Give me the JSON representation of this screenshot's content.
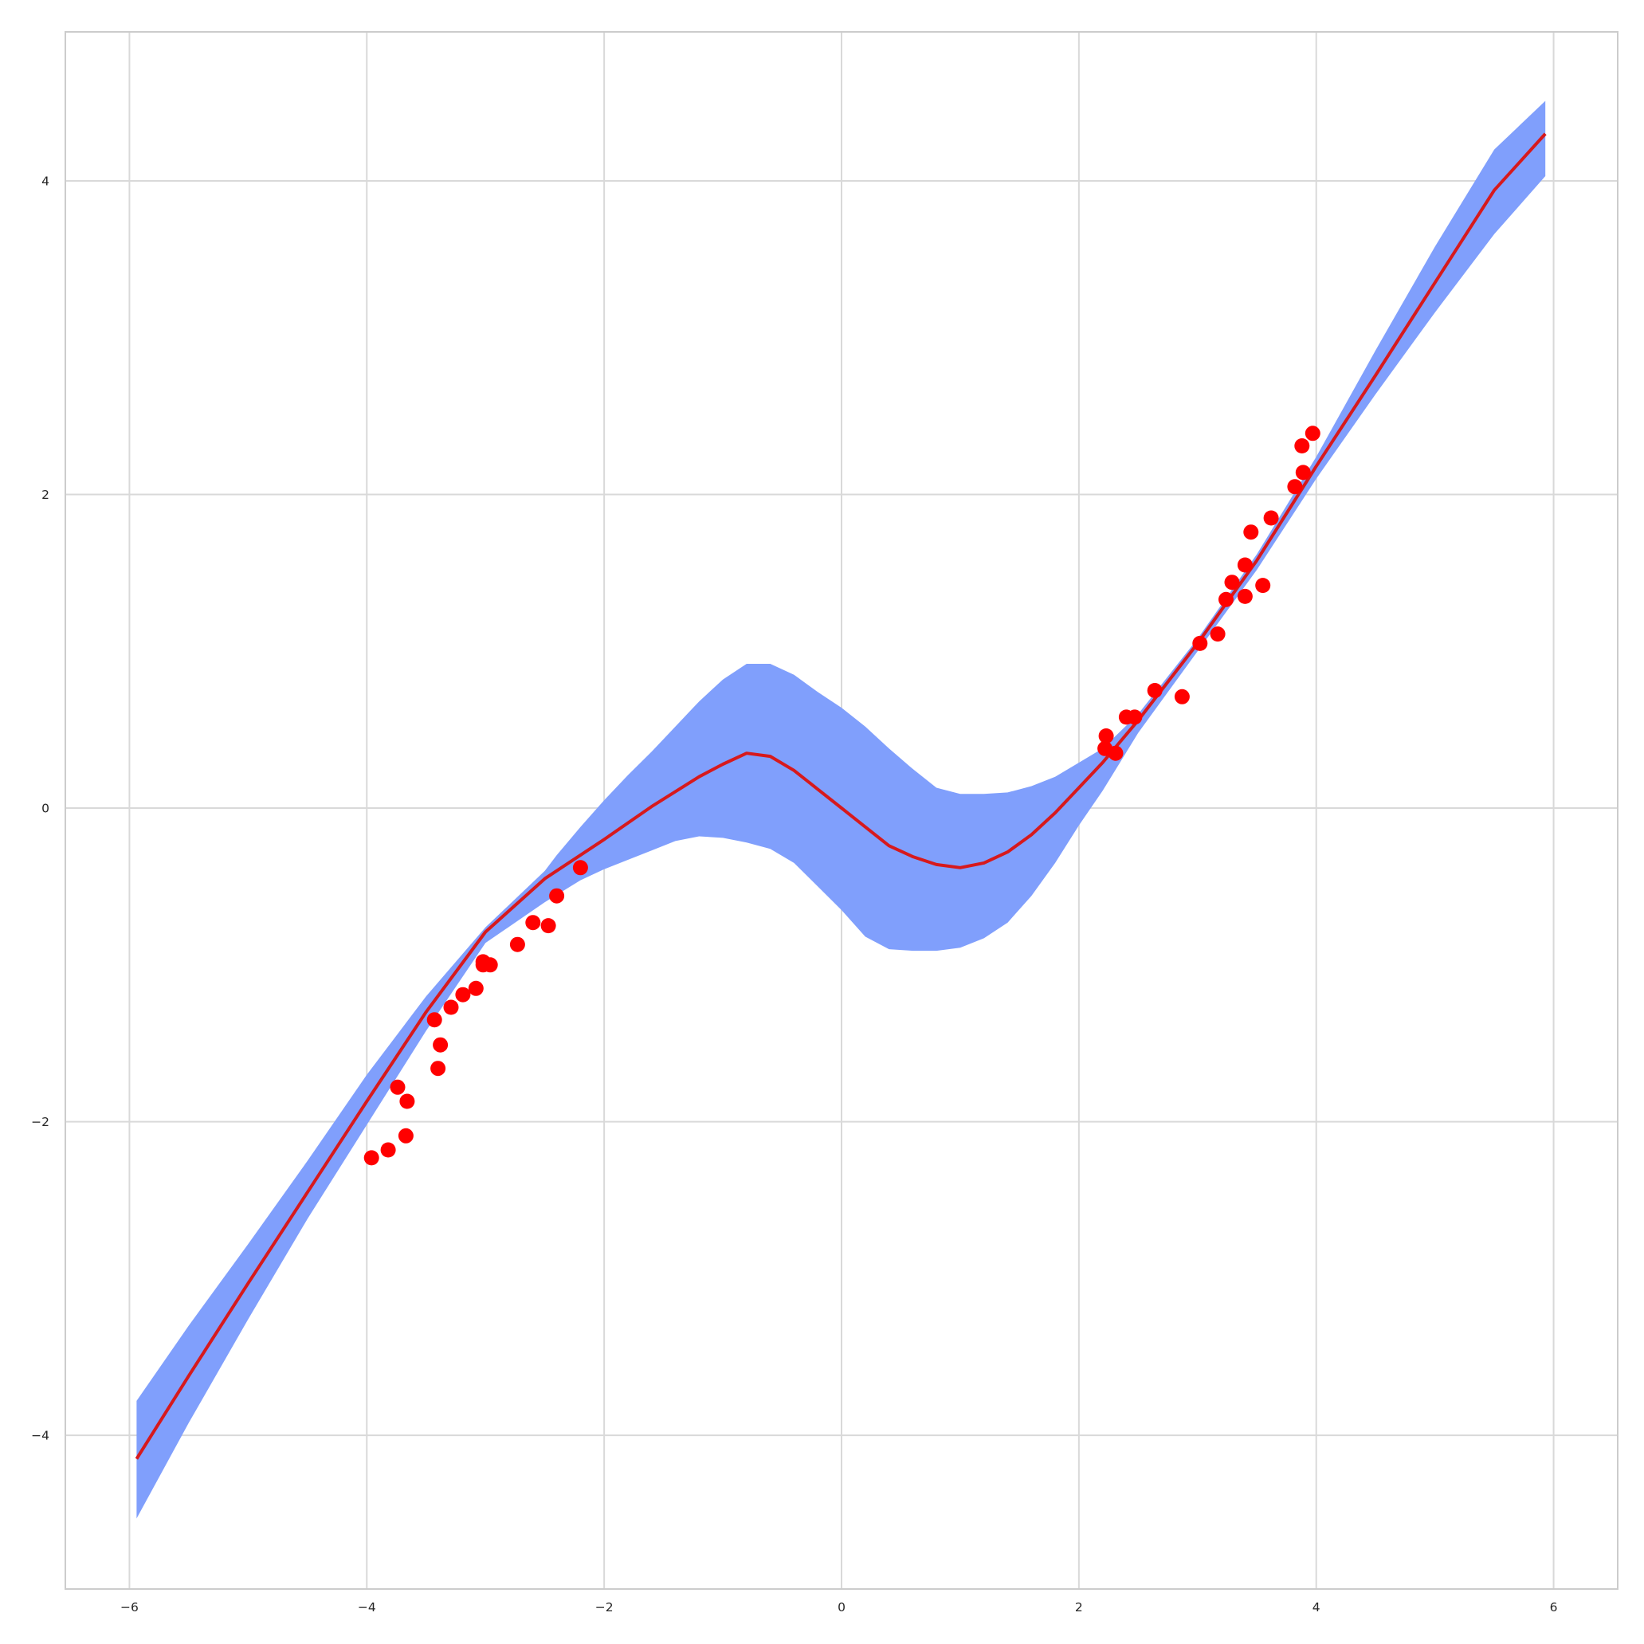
{
  "chart_data": {
    "type": "scatter",
    "title": "",
    "xlabel": "",
    "ylabel": "",
    "xlim": [
      -6.54,
      6.54
    ],
    "ylim": [
      -4.98,
      4.95
    ],
    "xticks": [
      -6,
      -4,
      -2,
      0,
      2,
      4,
      6
    ],
    "xtick_labels": [
      "−6",
      "−4",
      "−2",
      "0",
      "2",
      "4",
      "6"
    ],
    "yticks": [
      -4,
      -2,
      0,
      2,
      4
    ],
    "ytick_labels": [
      "−4",
      "−2",
      "0",
      "2",
      "4"
    ],
    "grid": true,
    "legend": false,
    "colors": {
      "points": "#ff0000",
      "mean_line": "#d7191c",
      "band": "#809ffc",
      "grid": "#d9d9d9",
      "frame": "#cccccc"
    },
    "series": [
      {
        "kind": "scatter",
        "points": [
          [
            -3.96,
            -2.23
          ],
          [
            -3.82,
            -2.18
          ],
          [
            -3.67,
            -2.09
          ],
          [
            -3.74,
            -1.78
          ],
          [
            -3.66,
            -1.87
          ],
          [
            -3.43,
            -1.35
          ],
          [
            -3.38,
            -1.51
          ],
          [
            -3.4,
            -1.66
          ],
          [
            -3.29,
            -1.27
          ],
          [
            -3.19,
            -1.19
          ],
          [
            -3.08,
            -1.15
          ],
          [
            -3.02,
            -0.98
          ],
          [
            -3.02,
            -1.0
          ],
          [
            -2.96,
            -1.0
          ],
          [
            -2.73,
            -0.87
          ],
          [
            -2.6,
            -0.73
          ],
          [
            -2.47,
            -0.75
          ],
          [
            -2.4,
            -0.56
          ],
          [
            -2.2,
            -0.38
          ],
          [
            2.23,
            0.46
          ],
          [
            2.22,
            0.38
          ],
          [
            2.31,
            0.35
          ],
          [
            2.4,
            0.58
          ],
          [
            2.47,
            0.58
          ],
          [
            2.64,
            0.75
          ],
          [
            2.87,
            0.71
          ],
          [
            3.02,
            1.05
          ],
          [
            3.17,
            1.11
          ],
          [
            3.24,
            1.33
          ],
          [
            3.29,
            1.44
          ],
          [
            3.4,
            1.35
          ],
          [
            3.4,
            1.55
          ],
          [
            3.45,
            1.76
          ],
          [
            3.55,
            1.42
          ],
          [
            3.62,
            1.85
          ],
          [
            3.82,
            2.05
          ],
          [
            3.88,
            2.31
          ],
          [
            3.89,
            2.14
          ],
          [
            3.97,
            2.39
          ]
        ]
      },
      {
        "kind": "line",
        "points": [
          [
            -5.94,
            -4.15
          ],
          [
            -5.5,
            -3.62
          ],
          [
            -5.0,
            -3.03
          ],
          [
            -4.5,
            -2.45
          ],
          [
            -4.0,
            -1.87
          ],
          [
            -3.5,
            -1.3
          ],
          [
            -3.0,
            -0.79
          ],
          [
            -2.5,
            -0.45
          ],
          [
            -2.0,
            -0.2
          ],
          [
            -1.6,
            0.01
          ],
          [
            -1.2,
            0.2
          ],
          [
            -1.0,
            0.28
          ],
          [
            -0.8,
            0.35
          ],
          [
            -0.6,
            0.33
          ],
          [
            -0.4,
            0.24
          ],
          [
            -0.2,
            0.12
          ],
          [
            0.0,
            0.0
          ],
          [
            0.2,
            -0.12
          ],
          [
            0.4,
            -0.24
          ],
          [
            0.6,
            -0.31
          ],
          [
            0.8,
            -0.36
          ],
          [
            1.0,
            -0.38
          ],
          [
            1.2,
            -0.35
          ],
          [
            1.4,
            -0.28
          ],
          [
            1.6,
            -0.17
          ],
          [
            1.8,
            -0.03
          ],
          [
            2.0,
            0.13
          ],
          [
            2.2,
            0.29
          ],
          [
            2.5,
            0.56
          ],
          [
            3.0,
            1.05
          ],
          [
            3.5,
            1.58
          ],
          [
            4.0,
            2.18
          ],
          [
            4.5,
            2.76
          ],
          [
            5.0,
            3.35
          ],
          [
            5.5,
            3.94
          ],
          [
            5.93,
            4.3
          ]
        ]
      },
      {
        "kind": "band",
        "upper": [
          [
            -5.94,
            -3.78
          ],
          [
            -5.5,
            -3.3
          ],
          [
            -5.0,
            -2.78
          ],
          [
            -4.5,
            -2.25
          ],
          [
            -4.0,
            -1.7
          ],
          [
            -3.5,
            -1.2
          ],
          [
            -3.0,
            -0.76
          ],
          [
            -2.5,
            -0.4
          ],
          [
            -2.4,
            -0.3
          ],
          [
            -2.2,
            -0.12
          ],
          [
            -2.0,
            0.05
          ],
          [
            -1.8,
            0.21
          ],
          [
            -1.6,
            0.36
          ],
          [
            -1.4,
            0.52
          ],
          [
            -1.2,
            0.68
          ],
          [
            -1.0,
            0.82
          ],
          [
            -0.8,
            0.92
          ],
          [
            -0.6,
            0.92
          ],
          [
            -0.4,
            0.85
          ],
          [
            -0.2,
            0.74
          ],
          [
            0.0,
            0.64
          ],
          [
            0.2,
            0.52
          ],
          [
            0.4,
            0.38
          ],
          [
            0.6,
            0.25
          ],
          [
            0.8,
            0.13
          ],
          [
            1.0,
            0.09
          ],
          [
            1.2,
            0.09
          ],
          [
            1.4,
            0.1
          ],
          [
            1.6,
            0.14
          ],
          [
            1.8,
            0.2
          ],
          [
            2.0,
            0.29
          ],
          [
            2.2,
            0.38
          ],
          [
            2.5,
            0.6
          ],
          [
            3.0,
            1.08
          ],
          [
            3.5,
            1.62
          ],
          [
            4.0,
            2.24
          ],
          [
            4.5,
            2.92
          ],
          [
            5.0,
            3.58
          ],
          [
            5.5,
            4.2
          ],
          [
            5.93,
            4.51
          ]
        ],
        "lower": [
          [
            -5.94,
            -4.53
          ],
          [
            -5.5,
            -3.92
          ],
          [
            -5.0,
            -3.26
          ],
          [
            -4.5,
            -2.62
          ],
          [
            -4.0,
            -2.02
          ],
          [
            -3.5,
            -1.42
          ],
          [
            -3.0,
            -0.86
          ],
          [
            -2.5,
            -0.6
          ],
          [
            -2.2,
            -0.46
          ],
          [
            -2.0,
            -0.39
          ],
          [
            -1.8,
            -0.33
          ],
          [
            -1.6,
            -0.27
          ],
          [
            -1.4,
            -0.21
          ],
          [
            -1.2,
            -0.18
          ],
          [
            -1.0,
            -0.19
          ],
          [
            -0.8,
            -0.22
          ],
          [
            -0.6,
            -0.26
          ],
          [
            -0.4,
            -0.35
          ],
          [
            -0.2,
            -0.5
          ],
          [
            0.0,
            -0.65
          ],
          [
            0.2,
            -0.82
          ],
          [
            0.4,
            -0.9
          ],
          [
            0.6,
            -0.91
          ],
          [
            0.8,
            -0.91
          ],
          [
            1.0,
            -0.89
          ],
          [
            1.2,
            -0.83
          ],
          [
            1.4,
            -0.73
          ],
          [
            1.6,
            -0.56
          ],
          [
            1.8,
            -0.35
          ],
          [
            2.0,
            -0.11
          ],
          [
            2.2,
            0.11
          ],
          [
            2.5,
            0.48
          ],
          [
            3.0,
            1.0
          ],
          [
            3.5,
            1.52
          ],
          [
            4.0,
            2.1
          ],
          [
            4.5,
            2.64
          ],
          [
            5.0,
            3.16
          ],
          [
            5.5,
            3.66
          ],
          [
            5.93,
            4.03
          ]
        ]
      }
    ]
  }
}
